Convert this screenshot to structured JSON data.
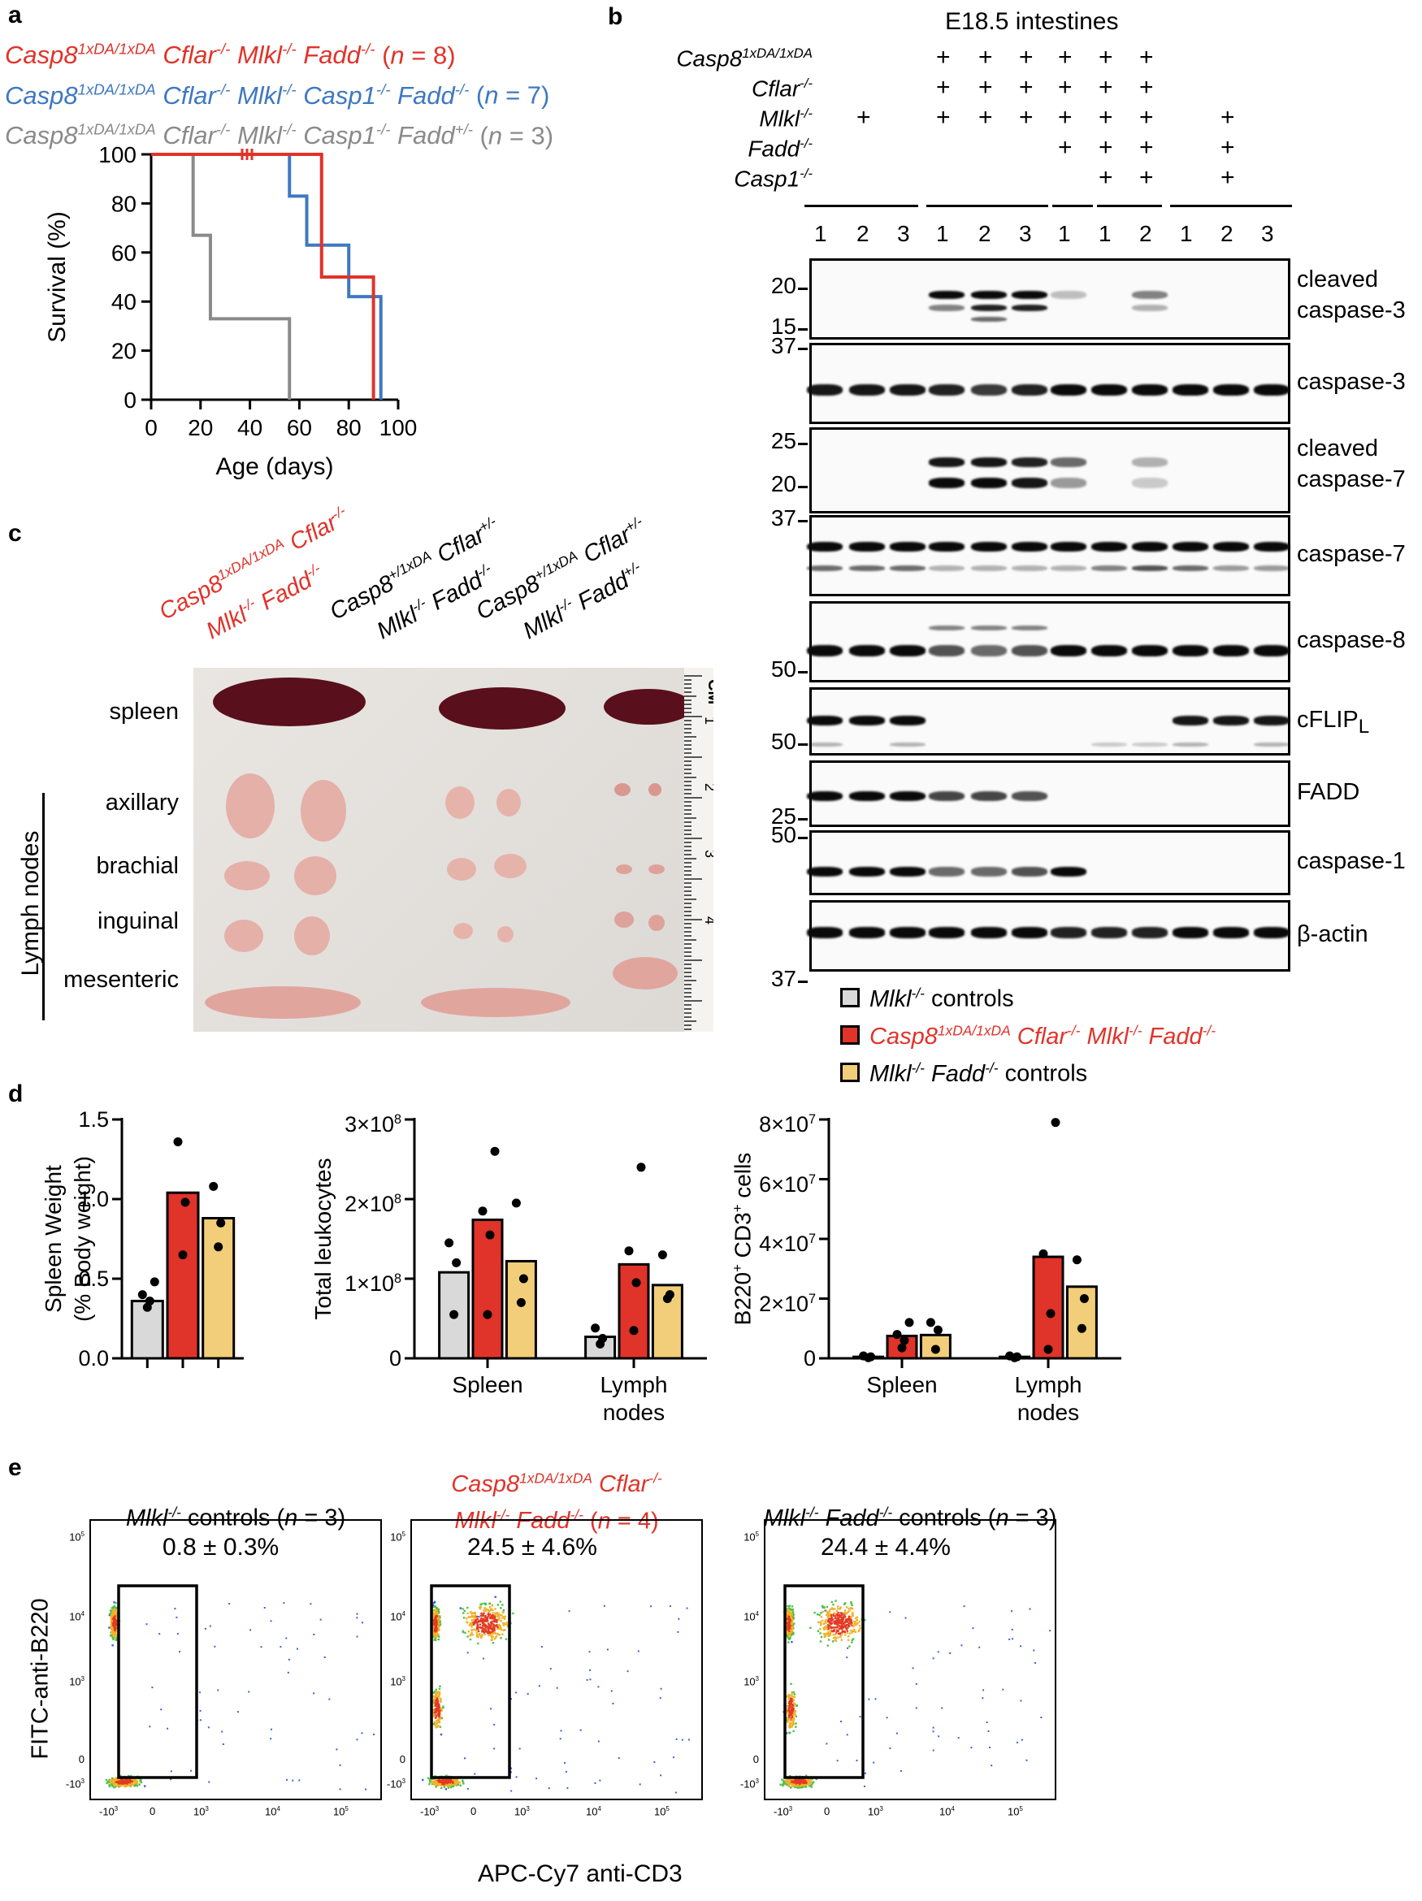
{
  "panels": {
    "a": "a",
    "b": "b",
    "c": "c",
    "d": "d",
    "e": "e"
  },
  "panel_a": {
    "legend": [
      {
        "genotype": "Casp8<sup>1xDA/1xDA</sup> Cflar<sup>-/-</sup> Mlkl<sup>-/-</sup> Fadd<sup>-/-</sup>",
        "n": "(n = 8)",
        "color": "#e0332a"
      },
      {
        "genotype": "Casp8<sup>1xDA/1xDA</sup> Cflar<sup>-/-</sup> Mlkl<sup>-/-</sup> Casp1<sup>-/-</sup> Fadd<sup>-/-</sup>",
        "n": "(n = 7)",
        "color": "#3f78c1"
      },
      {
        "genotype": "Casp8<sup>1xDA/1xDA</sup> Cflar<sup>-/-</sup> Mlkl<sup>-/-</sup> Casp1<sup>-/-</sup> Fadd<sup>+/-</sup>",
        "n": "(n = 3)",
        "color": "#8a8a8a"
      }
    ],
    "chart_data": {
      "type": "line",
      "xlabel": "Age (days)",
      "ylabel": "Survival (%)",
      "xlim": [
        0,
        100
      ],
      "ylim": [
        0,
        100
      ],
      "xticks": [
        "0",
        "20",
        "40",
        "60",
        "80",
        "100"
      ],
      "yticks": [
        "0",
        "20",
        "40",
        "60",
        "80",
        "100"
      ],
      "series": [
        {
          "color": "#8a8a8a",
          "x": [
            0,
            17,
            17,
            24,
            24,
            56,
            56
          ],
          "y": [
            100,
            100,
            67,
            67,
            33,
            33,
            0
          ]
        },
        {
          "color": "#3f78c1",
          "x": [
            0,
            56,
            56,
            63,
            63,
            80,
            80,
            93,
            93
          ],
          "y": [
            100,
            100,
            83,
            83,
            63,
            63,
            42,
            42,
            0
          ]
        },
        {
          "color": "#e0332a",
          "x": [
            0,
            69,
            69,
            90,
            90
          ],
          "y": [
            100,
            100,
            50,
            50,
            0
          ]
        }
      ]
    }
  },
  "panel_b": {
    "title": "E18.5 intestines",
    "genotype_rows": [
      {
        "label": "Casp8<sup>1xDA/1xDA</sup>",
        "plus": [
          false,
          false,
          false,
          true,
          true,
          true,
          true,
          true,
          true,
          false,
          false,
          false
        ]
      },
      {
        "label": "Cflar<sup>-/-</sup>",
        "plus": [
          false,
          false,
          false,
          true,
          true,
          true,
          true,
          true,
          true,
          false,
          false,
          false
        ]
      },
      {
        "label": "Mlkl<sup>-/-</sup>",
        "plus": [
          false,
          true,
          false,
          true,
          true,
          true,
          true,
          true,
          true,
          false,
          true,
          false
        ]
      },
      {
        "label": "Fadd<sup>-/-</sup>",
        "plus": [
          false,
          false,
          false,
          false,
          false,
          false,
          true,
          true,
          true,
          false,
          true,
          false
        ]
      },
      {
        "label": "Casp1<sup>-/-</sup>",
        "plus": [
          false,
          false,
          false,
          false,
          false,
          false,
          false,
          true,
          true,
          false,
          true,
          false
        ]
      }
    ],
    "plus_symbol": "+",
    "lane_numbers": [
      "1",
      "2",
      "3",
      "1",
      "2",
      "3",
      "1",
      "1",
      "2",
      "1",
      "2",
      "3"
    ],
    "blots": [
      {
        "label": "cleaved",
        "label2": "caspase-3",
        "markers": [
          "20",
          "15"
        ]
      },
      {
        "label": "caspase-3",
        "markers": [
          "37"
        ]
      },
      {
        "label": "cleaved",
        "label2": "caspase-7",
        "markers": [
          "25",
          "20"
        ]
      },
      {
        "label": "caspase-7",
        "markers": [
          "37"
        ]
      },
      {
        "label": "caspase-8",
        "markers": [
          "50"
        ]
      },
      {
        "label": "cFLIP<sub>L</sub>",
        "markers": [
          "50"
        ]
      },
      {
        "label": "FADD",
        "markers": [
          "25"
        ]
      },
      {
        "label": "caspase-1",
        "markers": [
          "50"
        ]
      },
      {
        "label": "β-actin",
        "markers": [
          "37"
        ]
      }
    ]
  },
  "panel_c": {
    "column_headers": [
      {
        "line1": "Casp8<sup>1xDA/1xDA</sup> Cflar<sup>-/-</sup>",
        "line2": "Mlkl<sup>-/-</sup> Fadd<sup>-/-</sup>",
        "color": "#e0332a"
      },
      {
        "line1": "Casp8<sup>+/1xDA</sup> Cflar<sup>+/-</sup>",
        "line2": "Mlkl<sup>-/-</sup> Fadd<sup>-/-</sup>",
        "color": "#000000"
      },
      {
        "line1": "Casp8<sup>+/1xDA</sup> Cflar<sup>+/-</sup>",
        "line2": "Mlkl<sup>-/-</sup> Fadd<sup>+/-</sup>",
        "color": "#000000"
      }
    ],
    "row_labels": [
      "spleen",
      "axillary",
      "brachial",
      "inguinal",
      "mesenteric"
    ],
    "group_label": "Lymph nodes",
    "ruler_unit": "CM",
    "ruler_numbers": [
      "1",
      "2",
      "3",
      "4"
    ]
  },
  "panel_d": {
    "legend": [
      {
        "label": "<i>Mlkl<sup>-/-</sup></i> controls",
        "color": "#d9d9d9"
      },
      {
        "label": "<i>Casp8<sup>1xDA/1xDA</sup> Cflar<sup>-/-</sup> Mlkl<sup>-/-</sup> Fadd<sup>-/-</sup></i>",
        "color": "#e0332a"
      },
      {
        "label": "<i>Mlkl<sup>-/-</sup> Fadd<sup>-/-</sup></i> controls",
        "color": "#f2ce7a"
      }
    ],
    "chart_data": [
      {
        "type": "bar",
        "ylabel_line1": "Spleen Weight",
        "ylabel_line2": "(% Body weight)",
        "ylim": [
          0,
          1.5
        ],
        "yticks": [
          "0.0",
          "0.5",
          "1.0",
          "1.5"
        ],
        "groups": [
          ""
        ],
        "series": [
          {
            "color": "#d9d9d9",
            "values": [
              0.36
            ],
            "points": [
              [
                0.32,
                0.36,
                0.4,
                0.48
              ]
            ]
          },
          {
            "color": "#e0332a",
            "values": [
              1.04
            ],
            "points": [
              [
                0.65,
                0.98,
                1.36
              ]
            ]
          },
          {
            "color": "#f2ce7a",
            "values": [
              0.88
            ],
            "points": [
              [
                0.7,
                0.85,
                1.08
              ]
            ]
          }
        ]
      },
      {
        "type": "bar",
        "ylabel": "Total leukocytes",
        "ylim": [
          0,
          3
        ],
        "yticks": [
          "0",
          "1×10<sup>8</sup>",
          "2×10<sup>8</sup>",
          "3×10<sup>8</sup>"
        ],
        "groups": [
          "Spleen",
          "Lymph|nodes"
        ],
        "series": [
          {
            "color": "#d9d9d9",
            "values": [
              1.08,
              0.27
            ],
            "points": [
              [
                0.55,
                1.2,
                1.45
              ],
              [
                0.18,
                0.25,
                0.38
              ]
            ]
          },
          {
            "color": "#e0332a",
            "values": [
              1.74,
              1.18
            ],
            "points": [
              [
                0.55,
                1.55,
                1.85,
                2.6
              ],
              [
                0.35,
                0.95,
                1.35,
                2.4
              ]
            ]
          },
          {
            "color": "#f2ce7a",
            "values": [
              1.22,
              0.92
            ],
            "points": [
              [
                0.7,
                1.0,
                1.95
              ],
              [
                0.75,
                0.8,
                1.3
              ]
            ]
          }
        ]
      },
      {
        "type": "bar",
        "ylabel": "B220<sup>+</sup> CD3<sup>+</sup> cells",
        "ylim": [
          0,
          8
        ],
        "yticks": [
          "0",
          "2×10<sup>7</sup>",
          "4×10<sup>7</sup>",
          "6×10<sup>7</sup>",
          "8×10<sup>7</sup>"
        ],
        "groups": [
          "Spleen",
          "Lymph|nodes"
        ],
        "series": [
          {
            "color": "#d9d9d9",
            "values": [
              0.05,
              0.05
            ],
            "points": [
              [
                0.02,
                0.05,
                0.08
              ],
              [
                0.02,
                0.05,
                0.08
              ]
            ]
          },
          {
            "color": "#e0332a",
            "values": [
              0.75,
              3.4
            ],
            "points": [
              [
                0.35,
                0.6,
                0.8,
                1.2
              ],
              [
                0.3,
                1.5,
                3.5,
                7.9
              ]
            ]
          },
          {
            "color": "#f2ce7a",
            "values": [
              0.78,
              2.4
            ],
            "points": [
              [
                0.3,
                0.95,
                1.2
              ],
              [
                1.0,
                2.0,
                3.3
              ]
            ]
          }
        ]
      }
    ]
  },
  "panel_e": {
    "ylabel": "FITC-anti-B220",
    "xlabel": "APC-Cy7 anti-CD3",
    "plots": [
      {
        "title": "<i>Mlkl<sup>-/-</sup></i> controls (<i>n</i> = 3)",
        "title_color": "#000000",
        "gate_value": "0.8 ± 0.3%"
      },
      {
        "title": "<i>Casp8<sup>1xDA/1xDA</sup> Cflar<sup>-/-</sup></i><br><i>Mlkl<sup>-/-</sup> Fadd<sup>-/-</sup></i> (<i>n</i> = 4)",
        "title_color": "#e0332a",
        "gate_value": "24.5 ± 4.6%"
      },
      {
        "title": "<i>Mlkl<sup>-/-</sup> Fadd<sup>-/-</sup></i> controls (<i>n</i> = 3)",
        "title_color": "#000000",
        "gate_value": "24.4 ± 4.4%"
      }
    ],
    "axis_ticks_x": [
      "-10<sup>3</sup>",
      "0",
      "10<sup>3</sup>",
      "10<sup>4</sup>",
      "10<sup>5</sup>"
    ],
    "axis_ticks_y": [
      "10<sup>5</sup>",
      "10<sup>4</sup>",
      "10<sup>3</sup>",
      "0",
      "-10<sup>3</sup>"
    ]
  }
}
